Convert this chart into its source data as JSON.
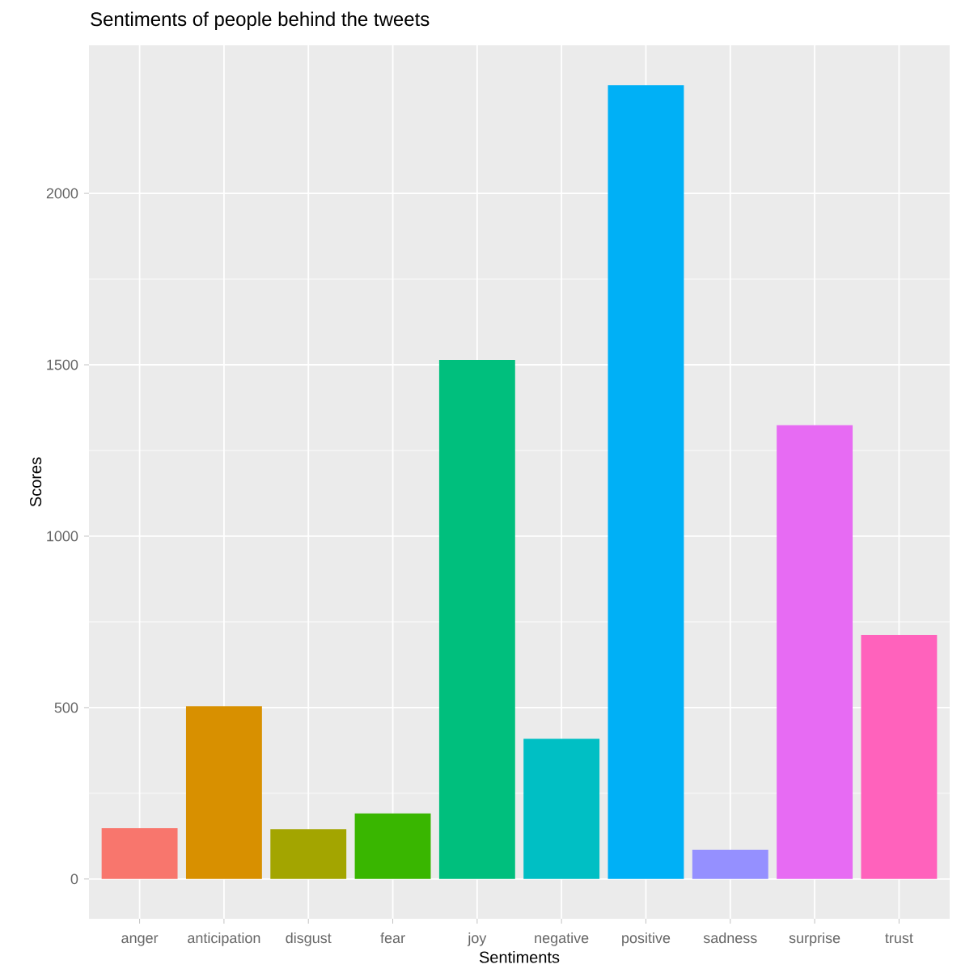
{
  "chart_data": {
    "type": "bar",
    "title": "Sentiments of people behind the tweets",
    "xlabel": "Sentiments",
    "ylabel": "Scores",
    "categories": [
      "anger",
      "anticipation",
      "disgust",
      "fear",
      "joy",
      "negative",
      "positive",
      "sadness",
      "surprise",
      "trust"
    ],
    "values": [
      148,
      504,
      145,
      191,
      1514,
      409,
      2316,
      85,
      1324,
      712
    ],
    "colors": [
      "#f8766d",
      "#d89000",
      "#a3a500",
      "#39b600",
      "#00bf7d",
      "#00bfc4",
      "#00b0f6",
      "#9590ff",
      "#e76bf3",
      "#ff62bc"
    ],
    "ylim": [
      -116,
      2432
    ],
    "yticks": [
      0,
      500,
      1000,
      1500,
      2000
    ],
    "grid": true
  }
}
